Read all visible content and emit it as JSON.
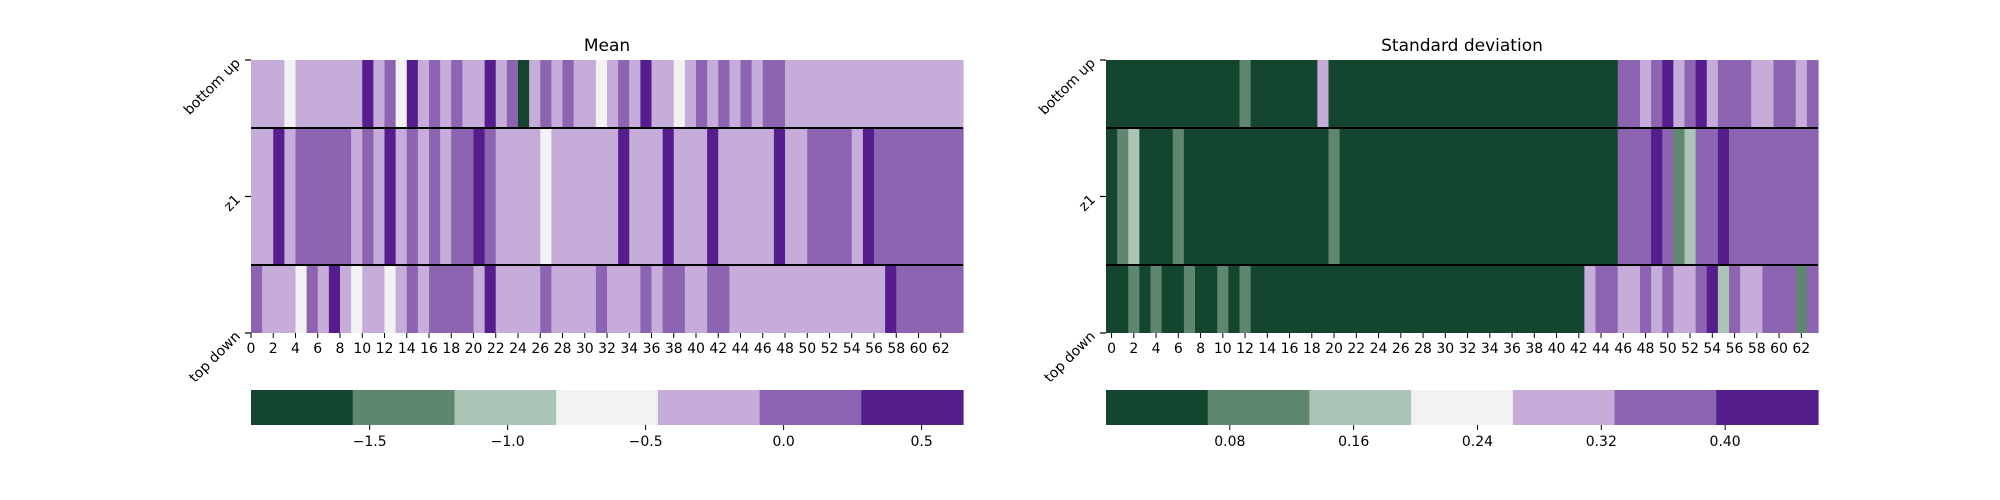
{
  "chart_data": [
    {
      "type": "heatmap",
      "title": "Mean",
      "rows": [
        "bottom up",
        "z1",
        "top down"
      ],
      "x_ticks": [
        0,
        2,
        4,
        6,
        8,
        10,
        12,
        14,
        16,
        18,
        20,
        22,
        24,
        26,
        28,
        30,
        32,
        34,
        36,
        38,
        40,
        42,
        44,
        46,
        48,
        50,
        52,
        54,
        56,
        58,
        60,
        62
      ],
      "colorbar": {
        "colors": [
          "#14452f",
          "#5f8770",
          "#abc4b6",
          "#f2f2f2",
          "#c5acd9",
          "#8c64b1",
          "#561d8d"
        ],
        "range": [
          -1.93,
          0.65
        ],
        "ticks": [
          -1.5,
          -1.0,
          -0.5,
          0.0,
          0.5
        ],
        "tick_labels": [
          "−1.5",
          "−1.0",
          "−0.5",
          "0.0",
          "0.5"
        ]
      },
      "values": [
        [
          4,
          4,
          4,
          3,
          4,
          4,
          4,
          4,
          4,
          4,
          6,
          4,
          5,
          3,
          6,
          4,
          5,
          4,
          5,
          4,
          4,
          6,
          4,
          5,
          0,
          4,
          5,
          4,
          5,
          4,
          4,
          3,
          4,
          5,
          4,
          6,
          4,
          4,
          3,
          4,
          5,
          4,
          5,
          4,
          5,
          4,
          5,
          5,
          4,
          4,
          4,
          4,
          4,
          4,
          4,
          4,
          4,
          4,
          4,
          4,
          4,
          4,
          4,
          4
        ],
        [
          4,
          4,
          6,
          4,
          5,
          5,
          5,
          5,
          5,
          4,
          5,
          4,
          6,
          4,
          5,
          4,
          5,
          4,
          5,
          5,
          6,
          5,
          4,
          4,
          4,
          4,
          3,
          4,
          4,
          4,
          4,
          4,
          4,
          6,
          4,
          4,
          4,
          6,
          4,
          4,
          4,
          6,
          4,
          4,
          4,
          4,
          4,
          6,
          4,
          4,
          5,
          5,
          5,
          5,
          4,
          6,
          5,
          5,
          5,
          5,
          5,
          5,
          5,
          5
        ],
        [
          5,
          4,
          4,
          4,
          3,
          5,
          4,
          6,
          4,
          3,
          4,
          4,
          3,
          4,
          5,
          4,
          5,
          5,
          5,
          5,
          4,
          6,
          4,
          4,
          4,
          4,
          5,
          4,
          4,
          4,
          4,
          5,
          4,
          4,
          4,
          5,
          4,
          5,
          5,
          4,
          4,
          5,
          5,
          4,
          4,
          4,
          4,
          4,
          4,
          4,
          4,
          4,
          4,
          4,
          4,
          4,
          4,
          6,
          5,
          5,
          5,
          5,
          5,
          5
        ]
      ]
    },
    {
      "type": "heatmap",
      "title": "Standard deviation",
      "rows": [
        "bottom up",
        "z1",
        "top down"
      ],
      "x_ticks": [
        0,
        2,
        4,
        6,
        8,
        10,
        12,
        14,
        16,
        18,
        20,
        22,
        24,
        26,
        28,
        30,
        32,
        34,
        36,
        38,
        40,
        42,
        44,
        46,
        48,
        50,
        52,
        54,
        56,
        58,
        60,
        62
      ],
      "colorbar": {
        "colors": [
          "#14452f",
          "#5f8770",
          "#abc4b6",
          "#f2f2f2",
          "#c5acd9",
          "#8c64b1",
          "#561d8d"
        ],
        "range": [
          0.0,
          0.46
        ],
        "ticks": [
          0.08,
          0.16,
          0.24,
          0.32,
          0.4
        ],
        "tick_labels": [
          "0.08",
          "0.16",
          "0.24",
          "0.32",
          "0.40"
        ]
      },
      "values": [
        [
          0,
          0,
          0,
          0,
          0,
          0,
          0,
          0,
          0,
          0,
          0,
          0,
          1,
          0,
          0,
          0,
          0,
          0,
          0,
          4,
          0,
          0,
          0,
          0,
          0,
          0,
          0,
          0,
          0,
          0,
          0,
          0,
          0,
          0,
          0,
          0,
          0,
          0,
          0,
          0,
          0,
          0,
          0,
          0,
          0,
          0,
          5,
          5,
          4,
          5,
          6,
          4,
          5,
          6,
          4,
          5,
          5,
          5,
          4,
          4,
          5,
          5,
          4,
          5
        ],
        [
          0,
          1,
          2,
          0,
          0,
          0,
          1,
          0,
          0,
          0,
          0,
          0,
          0,
          0,
          0,
          0,
          0,
          0,
          0,
          0,
          1,
          0,
          0,
          0,
          0,
          0,
          0,
          0,
          0,
          0,
          0,
          0,
          0,
          0,
          0,
          0,
          0,
          0,
          0,
          0,
          0,
          0,
          0,
          0,
          0,
          0,
          5,
          5,
          5,
          6,
          5,
          1,
          2,
          5,
          5,
          6,
          5,
          5,
          5,
          5,
          5,
          5,
          5,
          5
        ],
        [
          0,
          0,
          1,
          0,
          1,
          0,
          0,
          1,
          0,
          0,
          1,
          0,
          1,
          0,
          0,
          0,
          0,
          0,
          0,
          0,
          0,
          0,
          0,
          0,
          0,
          0,
          0,
          0,
          0,
          0,
          0,
          0,
          0,
          0,
          0,
          0,
          0,
          0,
          0,
          0,
          0,
          0,
          0,
          4,
          5,
          5,
          4,
          4,
          5,
          4,
          5,
          4,
          4,
          5,
          6,
          2,
          5,
          4,
          4,
          5,
          5,
          5,
          1,
          5
        ]
      ]
    }
  ]
}
